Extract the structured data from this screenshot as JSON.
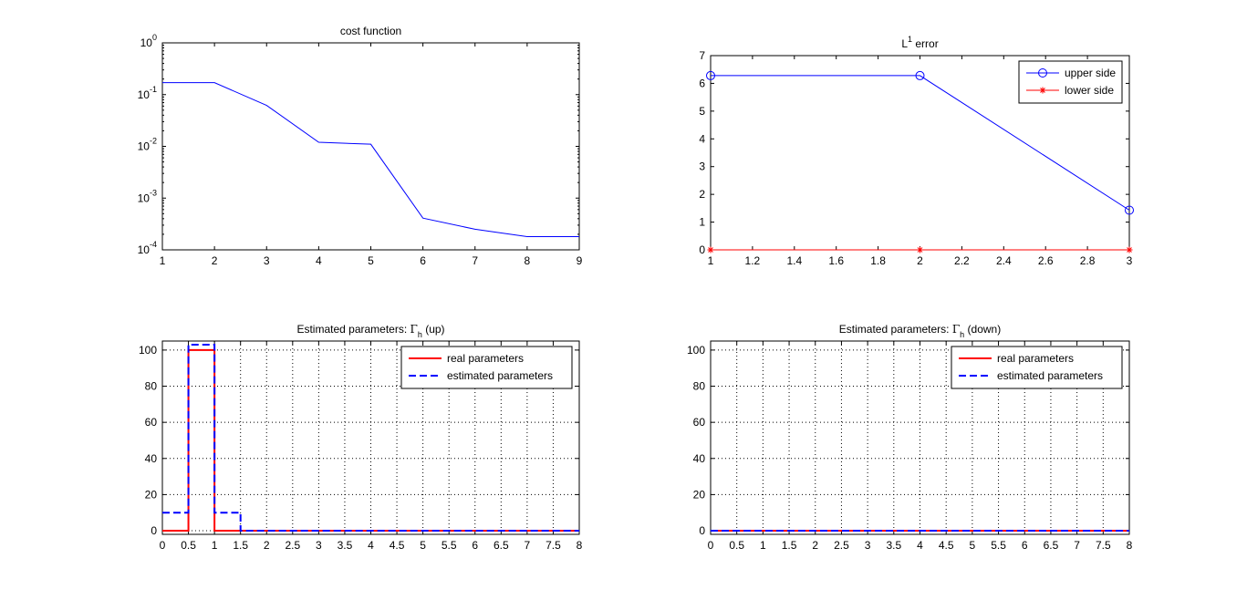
{
  "figure": {
    "background": "#ffffff"
  },
  "chart_data": [
    {
      "id": "cost",
      "type": "line",
      "title": "cost function",
      "xlim": [
        1,
        9
      ],
      "ylim": [
        0.0001,
        1
      ],
      "yscale": "log",
      "grid": false,
      "xticks": [
        1,
        2,
        3,
        4,
        5,
        6,
        7,
        8,
        9
      ],
      "xtick_labels": [
        "1",
        "2",
        "3",
        "4",
        "5",
        "6",
        "7",
        "8",
        "9"
      ],
      "yticks": [
        0.0001,
        0.001,
        0.01,
        0.1,
        1
      ],
      "ytick_labels": [
        {
          "base": "10",
          "exp": "-4"
        },
        {
          "base": "10",
          "exp": "-3"
        },
        {
          "base": "10",
          "exp": "-2"
        },
        {
          "base": "10",
          "exp": "-1"
        },
        {
          "base": "10",
          "exp": "0"
        }
      ],
      "series": [
        {
          "color": "#0000ff",
          "style": "solid",
          "marker": "none",
          "x": [
            1,
            2,
            3,
            4,
            5,
            6,
            7,
            8,
            9
          ],
          "y": [
            0.17,
            0.17,
            0.062,
            0.012,
            0.011,
            0.00041,
            0.00025,
            0.00018,
            0.00018
          ]
        }
      ]
    },
    {
      "id": "l1",
      "type": "line",
      "title": {
        "base": "L",
        "sup": "1",
        "rest": " error"
      },
      "xlim": [
        1,
        3
      ],
      "ylim": [
        0,
        7
      ],
      "yscale": "linear",
      "grid": false,
      "xticks": [
        1,
        1.2,
        1.4,
        1.6,
        1.8,
        2,
        2.2,
        2.4,
        2.6,
        2.8,
        3
      ],
      "xtick_labels": [
        "1",
        "1.2",
        "1.4",
        "1.6",
        "1.8",
        "2",
        "2.2",
        "2.4",
        "2.6",
        "2.8",
        "3"
      ],
      "yticks": [
        0,
        1,
        2,
        3,
        4,
        5,
        6,
        7
      ],
      "ytick_labels": [
        "0",
        "1",
        "2",
        "3",
        "4",
        "5",
        "6",
        "7"
      ],
      "legend_position": "top-right",
      "series": [
        {
          "name": "upper side",
          "color": "#0000ff",
          "style": "solid",
          "marker": "circle",
          "x": [
            1,
            2,
            3
          ],
          "y": [
            6.28,
            6.28,
            1.43
          ]
        },
        {
          "name": "lower side",
          "color": "#ff0000",
          "style": "solid",
          "marker": "star",
          "x": [
            1,
            2,
            3
          ],
          "y": [
            0,
            0,
            0
          ]
        }
      ]
    },
    {
      "id": "gamma-up",
      "type": "line",
      "title": {
        "prefix": "Estimated parameters: ",
        "symbol": "Γ",
        "sub": "h",
        "suffix": " (up)"
      },
      "xlim": [
        0,
        8
      ],
      "ylim": [
        -2,
        105
      ],
      "yscale": "linear",
      "grid": true,
      "xticks": [
        0,
        0.5,
        1,
        1.5,
        2,
        2.5,
        3,
        3.5,
        4,
        4.5,
        5,
        5.5,
        6,
        6.5,
        7,
        7.5,
        8
      ],
      "xtick_labels": [
        "0",
        "0.5",
        "1",
        "1.5",
        "2",
        "2.5",
        "3",
        "3.5",
        "4",
        "4.5",
        "5",
        "5.5",
        "6",
        "6.5",
        "7",
        "7.5",
        "8"
      ],
      "yticks": [
        0,
        20,
        40,
        60,
        80,
        100
      ],
      "ytick_labels": [
        "0",
        "20",
        "40",
        "60",
        "80",
        "100"
      ],
      "legend_position": "top-right",
      "series": [
        {
          "name": "real parameters",
          "color": "#ff0000",
          "style": "solid",
          "marker": "none",
          "width": 2,
          "x": [
            0,
            0.5,
            0.5,
            1,
            1,
            8
          ],
          "y": [
            0,
            0,
            100,
            100,
            0,
            0
          ]
        },
        {
          "name": "estimated parameters",
          "color": "#0000ff",
          "style": "dashed",
          "marker": "none",
          "width": 2,
          "x": [
            0,
            0.5,
            0.5,
            1,
            1,
            1.5,
            1.5,
            8
          ],
          "y": [
            10,
            10,
            103,
            103,
            10,
            10,
            0,
            0
          ]
        }
      ]
    },
    {
      "id": "gamma-down",
      "type": "line",
      "title": {
        "prefix": "Estimated parameters: ",
        "symbol": "Γ",
        "sub": "h",
        "suffix": " (down)"
      },
      "xlim": [
        0,
        8
      ],
      "ylim": [
        -2,
        105
      ],
      "yscale": "linear",
      "grid": true,
      "xticks": [
        0,
        0.5,
        1,
        1.5,
        2,
        2.5,
        3,
        3.5,
        4,
        4.5,
        5,
        5.5,
        6,
        6.5,
        7,
        7.5,
        8
      ],
      "xtick_labels": [
        "0",
        "0.5",
        "1",
        "1.5",
        "2",
        "2.5",
        "3",
        "3.5",
        "4",
        "4.5",
        "5",
        "5.5",
        "6",
        "6.5",
        "7",
        "7.5",
        "8"
      ],
      "yticks": [
        0,
        20,
        40,
        60,
        80,
        100
      ],
      "ytick_labels": [
        "0",
        "20",
        "40",
        "60",
        "80",
        "100"
      ],
      "legend_position": "top-right",
      "series": [
        {
          "name": "real parameters",
          "color": "#ff0000",
          "style": "solid",
          "marker": "none",
          "width": 2,
          "x": [
            0,
            8
          ],
          "y": [
            0,
            0
          ]
        },
        {
          "name": "estimated parameters",
          "color": "#0000ff",
          "style": "dashed",
          "marker": "none",
          "width": 2,
          "x": [
            0,
            8
          ],
          "y": [
            0,
            0
          ]
        }
      ]
    }
  ]
}
